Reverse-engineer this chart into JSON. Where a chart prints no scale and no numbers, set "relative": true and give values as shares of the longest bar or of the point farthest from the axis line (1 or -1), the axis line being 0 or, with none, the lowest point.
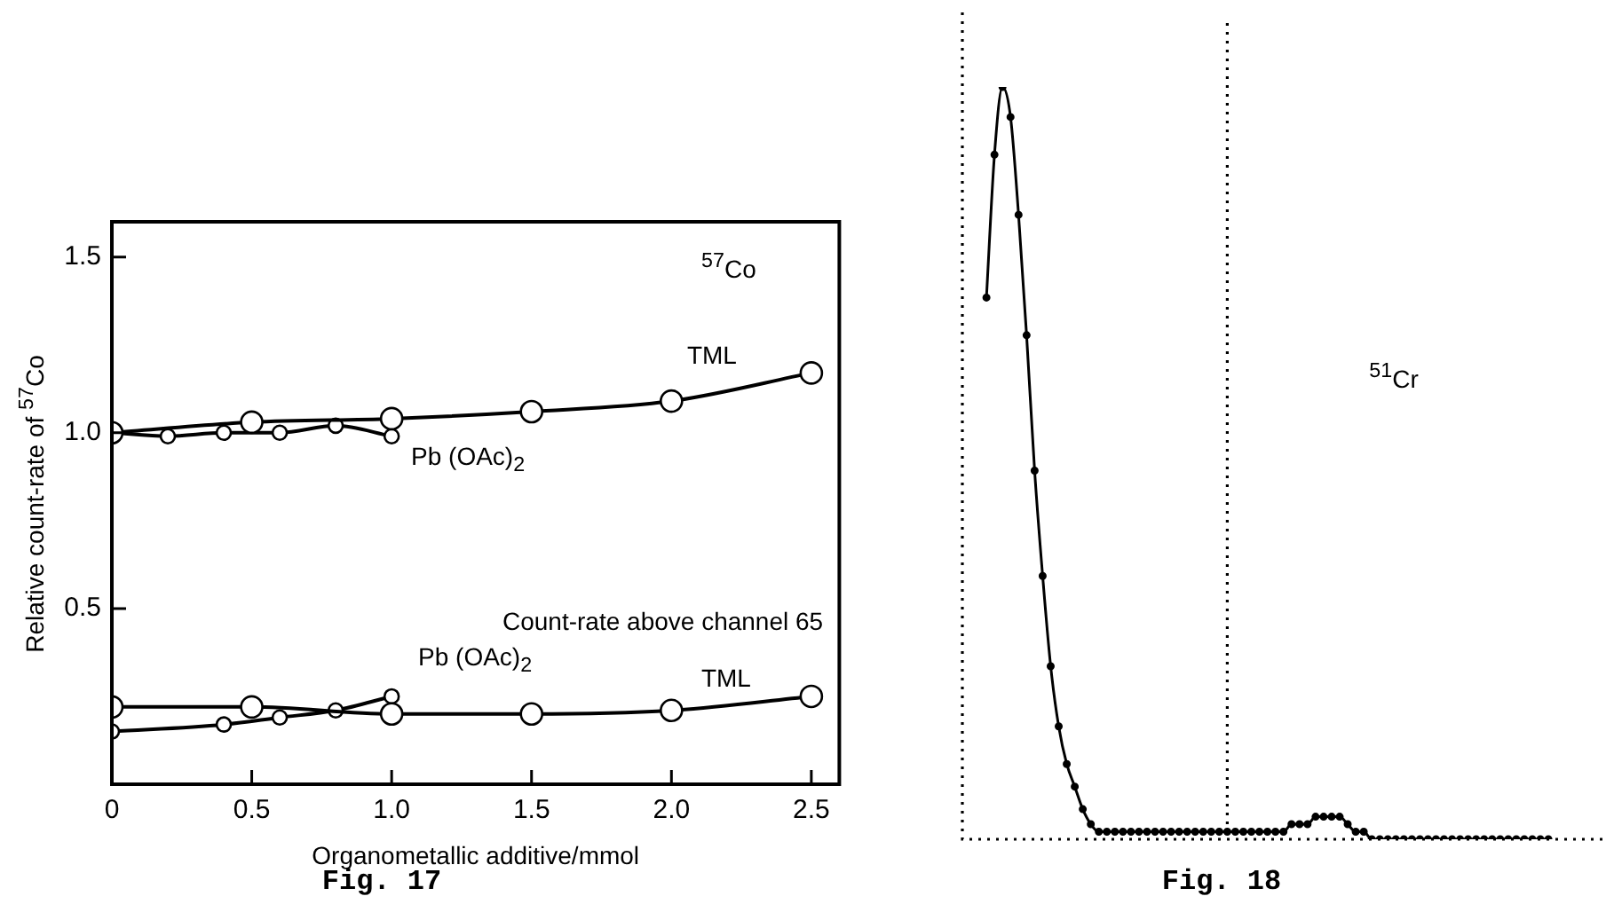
{
  "chart_data": [
    {
      "type": "line",
      "xlabel": "Organometallic additive/mmol",
      "ylabel": "Relative count-rate of $^{57}$Co",
      "xlim": [
        0,
        2.6
      ],
      "xticks": [
        0,
        0.5,
        {
          "value": 1,
          "label": "1.0"
        },
        1.5,
        {
          "value": 2,
          "label": "2.0"
        },
        2.5
      ],
      "ylim": [
        0,
        1.6
      ],
      "yticks": [
        0.5,
        {
          "value": 1,
          "label": "1.0"
        },
        1.5
      ],
      "marker": "circle",
      "annotations": [
        "$^{57}$Co",
        "Count-rate above channel 65",
        "Fig. 17"
      ],
      "series": [
        {
          "name": "TML",
          "color": "#000000",
          "x": [
            0,
            0.5,
            1,
            1.5,
            2,
            2.5
          ],
          "values": [
            1.0,
            1.03,
            1.04,
            1.06,
            1.09,
            1.17
          ]
        },
        {
          "name": "Pb (OAc)$_{2}$",
          "color": "#000000",
          "x": [
            0,
            0.2,
            0.4,
            0.6,
            0.8,
            1.0
          ],
          "values": [
            1.0,
            0.99,
            1.0,
            1.0,
            1.02,
            0.99
          ]
        },
        {
          "name": "TML",
          "color": "#000000",
          "x": [
            0,
            0.5,
            1,
            1.5,
            2,
            2.5
          ],
          "values": [
            0.22,
            0.22,
            0.2,
            0.2,
            0.21,
            0.25
          ]
        },
        {
          "name": "Pb (OAc)$_{2}$",
          "color": "#000000",
          "x": [
            0,
            0.4,
            0.6,
            0.8,
            1.0
          ],
          "values": [
            0.15,
            0.17,
            0.19,
            0.21,
            0.25
          ]
        }
      ]
    },
    {
      "type": "line",
      "relative": true,
      "tick_labels": false,
      "marker": "circle",
      "categories": [
        null,
        null,
        null,
        null,
        null,
        null,
        null,
        null,
        null,
        null,
        null,
        null,
        null,
        null,
        null,
        null,
        null,
        null,
        null,
        null,
        null,
        null,
        null,
        null,
        null,
        null,
        null,
        null,
        null,
        null,
        null,
        null,
        null,
        null,
        null,
        null,
        null,
        null,
        null,
        null,
        null,
        null,
        null,
        null,
        null,
        null,
        null,
        null,
        null,
        null,
        null,
        null,
        null,
        null,
        null,
        null,
        null,
        null,
        null,
        null,
        null,
        null,
        null,
        null,
        null,
        null,
        null,
        null,
        null,
        null,
        null,
        null,
        null,
        null,
        null,
        null,
        null,
        null,
        null,
        null,
        null
      ],
      "series": [
        {
          "color": "#000000",
          "values": [
            null,
            null,
            null,
            0.72,
            0.91,
            1,
            0.96,
            0.83,
            0.67,
            0.49,
            0.35,
            0.23,
            0.15,
            0.1,
            0.07,
            0.04,
            0.02,
            0.01,
            0.01,
            0.01,
            0.01,
            0.01,
            0.01,
            0.01,
            0.01,
            0.01,
            0.01,
            0.01,
            0.01,
            0.01,
            0.01,
            0.01,
            0.01,
            0.01,
            0.01,
            0.01,
            0.01,
            0.01,
            0.01,
            0.01,
            0.01,
            0.02,
            0.02,
            0.02,
            0.03,
            0.03,
            0.03,
            0.03,
            0.02,
            0.01,
            0.01,
            0,
            0,
            0,
            0,
            0,
            0,
            0,
            0,
            0,
            0,
            0,
            0,
            0,
            0,
            0,
            0,
            0,
            0,
            0,
            0,
            0,
            0,
            0,
            null,
            null,
            null,
            null,
            null,
            null,
            null
          ]
        }
      ],
      "annotations": [
        "$^{51}$Cr",
        "Fig. 18"
      ]
    }
  ]
}
